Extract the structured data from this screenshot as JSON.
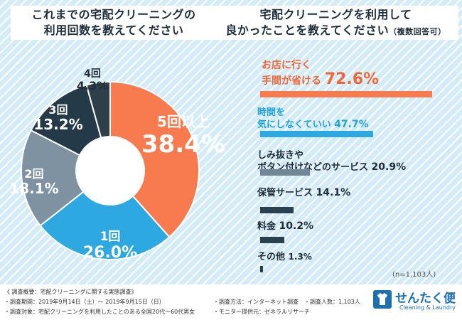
{
  "left_title": {
    "line1": "これまでの宅配クリーニングの",
    "line2": "利用回数を教えてください"
  },
  "right_title": {
    "line1": "宅配クリーニングを利用して",
    "line2": "良かったことを教えてください",
    "sub": "（複数回答可）"
  },
  "chart_data": [
    {
      "type": "pie",
      "title": "これまでの宅配クリーニングの利用回数を教えてください",
      "categories": [
        "5回以上",
        "1回",
        "2回",
        "3回",
        "4回"
      ],
      "values": [
        38.4,
        26.0,
        18.1,
        13.2,
        4.3
      ],
      "value_labels": [
        "38.4%",
        "26.0%",
        "18.1%",
        "13.2%",
        "4.3%"
      ],
      "colors": [
        "#f77b4f",
        "#2ea8e0",
        "#7f92a2",
        "#253a48",
        "#2f3f4a"
      ]
    },
    {
      "type": "bar",
      "title": "宅配クリーニングを利用して良かったことを教えてください（複数回答可）",
      "categories": [
        "お店に行く手間が省ける",
        "時間を気にしなくていい",
        "しみ抜きやボタン付けなどのサービス",
        "保管サービス",
        "料金",
        "その他"
      ],
      "label_lines": [
        [
          "お店に行く",
          "手間が省ける"
        ],
        [
          "時間を",
          "気にしなくていい"
        ],
        [
          "しみ抜きや",
          "ボタン付けなどのサービス"
        ],
        [
          "保管サービス"
        ],
        [
          "料金"
        ],
        [
          "その他"
        ]
      ],
      "values": [
        72.6,
        47.7,
        20.9,
        14.1,
        10.2,
        1.3
      ],
      "value_labels": [
        "72.6%",
        "47.7%",
        "20.9%",
        "14.1%",
        "10.2%",
        "1.3%"
      ],
      "colors": [
        "#f77b4f",
        "#2ea8e0",
        "#6f8796",
        "#2a4150",
        "#2a4150",
        "#2a4150"
      ],
      "xlim": [
        0,
        100
      ],
      "note": "(n=1,103人)"
    }
  ],
  "footer": {
    "overview": "《 調査概要：宅配クリーニングに関する実態調査》",
    "period": "・調査期間：2019年9月14日（土）～ 2019年9月15日（日）",
    "target": "・調査対象：宅配クリーニングを利用したことのある全国20代～60代男女",
    "method": "・調査方法：インターネット調査　・調査人数：1,103人",
    "monitor": "・モニター提供元：ゼネラルリサーチ"
  },
  "logo": {
    "name": "せんたく便",
    "tagline": "Cleaning & Laundry"
  }
}
